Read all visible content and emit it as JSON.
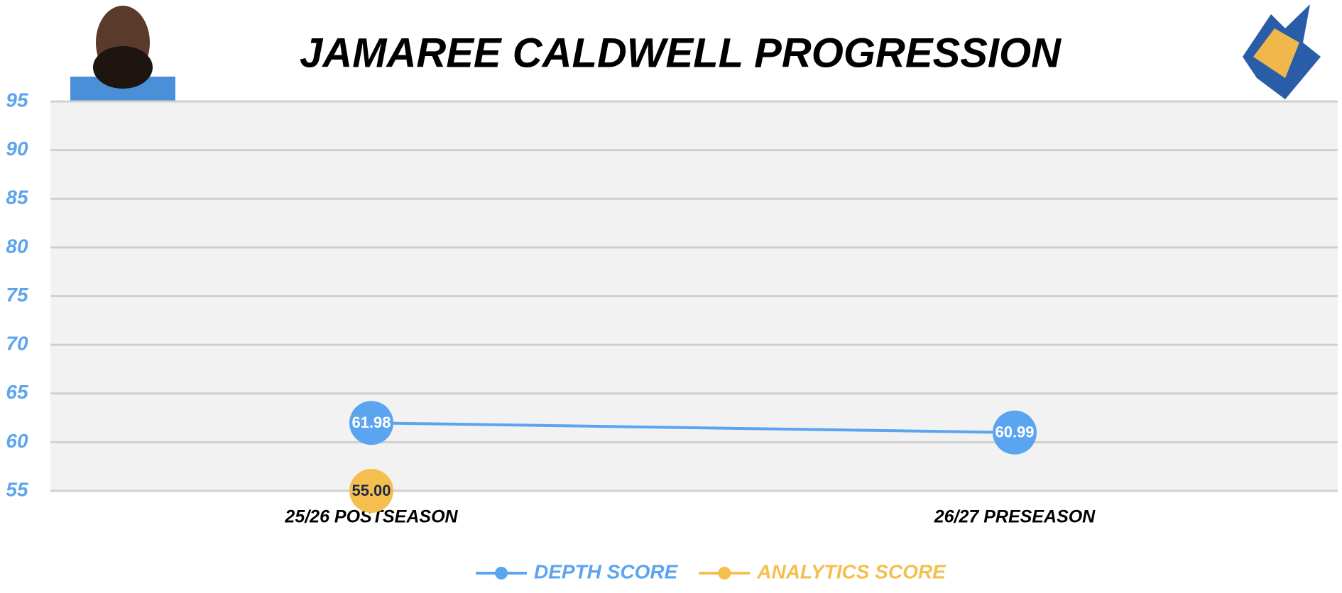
{
  "chart_data": {
    "type": "line",
    "title": "JAMAREE CALDWELL PROGRESSION",
    "categories": [
      "25/26 POSTSEASON",
      "26/27 PRESEASON"
    ],
    "series": [
      {
        "name": "DEPTH SCORE",
        "color": "#5ba4f0",
        "values": [
          61.98,
          60.99
        ],
        "value_labels": [
          "61.98",
          "60.99"
        ]
      },
      {
        "name": "ANALYTICS SCORE",
        "color": "#f5bf4f",
        "values": [
          55.0,
          null
        ],
        "value_labels": [
          "55.00",
          null
        ]
      }
    ],
    "ylim": [
      55,
      95
    ],
    "yticks": [
      55,
      60,
      65,
      70,
      75,
      80,
      85,
      90,
      95
    ],
    "grid": true,
    "legend": "bottom"
  }
}
